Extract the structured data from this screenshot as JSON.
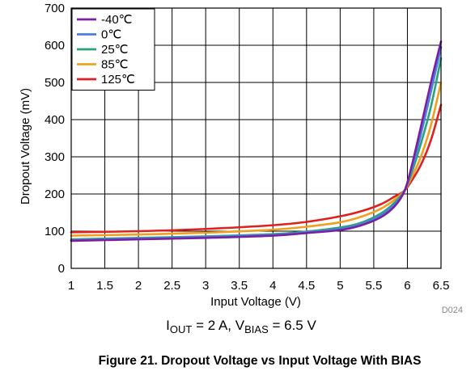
{
  "chart_data": {
    "type": "line",
    "xlabel": "Input Voltage (V)",
    "ylabel": "Dropout Voltage (mV)",
    "xlim": [
      1,
      6.5
    ],
    "ylim": [
      0,
      700
    ],
    "x_ticks": [
      "1",
      "1.5",
      "2",
      "2.5",
      "3",
      "3.5",
      "4",
      "4.5",
      "5",
      "5.5",
      "6",
      "6.5"
    ],
    "y_ticks": [
      "0",
      "100",
      "200",
      "300",
      "400",
      "500",
      "600",
      "700"
    ],
    "grid": true,
    "legend_position": "top-left",
    "plot_id": "D024",
    "condition": {
      "iout_main": "I",
      "iout_sub": "OUT",
      "middle": " = 2 A, V",
      "vbias_sub": "BIAS",
      "end": " = 6.5 V"
    },
    "figure_caption": "Figure 21. Dropout Voltage vs Input Voltage With BIAS",
    "series": [
      {
        "name": "-40℃",
        "color": "#7b1fa2",
        "x": [
          1.0,
          2.0,
          3.0,
          4.0,
          4.5,
          5.0,
          5.3,
          5.6,
          5.8,
          5.95,
          6.05,
          6.2,
          6.35,
          6.5
        ],
        "y": [
          74,
          78,
          82,
          88,
          95,
          103,
          115,
          137,
          165,
          205,
          265,
          380,
          500,
          610
        ]
      },
      {
        "name": "0℃",
        "color": "#4a7fe0",
        "x": [
          1.0,
          2.0,
          3.0,
          4.0,
          4.5,
          5.0,
          5.3,
          5.6,
          5.8,
          5.95,
          6.05,
          6.2,
          6.35,
          6.5
        ],
        "y": [
          76,
          80,
          84,
          90,
          97,
          106,
          118,
          142,
          170,
          206,
          258,
          360,
          475,
          595
        ]
      },
      {
        "name": "25℃",
        "color": "#2aa37a",
        "x": [
          1.0,
          2.0,
          3.0,
          4.0,
          4.5,
          5.0,
          5.3,
          5.6,
          5.8,
          5.95,
          6.05,
          6.2,
          6.35,
          6.5
        ],
        "y": [
          78,
          82,
          86,
          92,
          99,
          110,
          122,
          147,
          175,
          207,
          250,
          335,
          435,
          565
        ]
      },
      {
        "name": "85℃",
        "color": "#f0a020",
        "x": [
          1.0,
          2.0,
          3.0,
          4.0,
          4.5,
          5.0,
          5.3,
          5.6,
          5.8,
          5.95,
          6.05,
          6.2,
          6.35,
          6.5
        ],
        "y": [
          88,
          91,
          96,
          104,
          112,
          124,
          138,
          160,
          183,
          208,
          240,
          300,
          385,
          500
        ]
      },
      {
        "name": "125℃",
        "color": "#e02020",
        "x": [
          1.0,
          2.0,
          3.0,
          4.0,
          4.5,
          5.0,
          5.3,
          5.6,
          5.8,
          5.95,
          6.05,
          6.2,
          6.35,
          6.5
        ],
        "y": [
          97,
          100,
          106,
          116,
          125,
          140,
          153,
          172,
          192,
          208,
          232,
          278,
          345,
          440
        ]
      }
    ]
  }
}
